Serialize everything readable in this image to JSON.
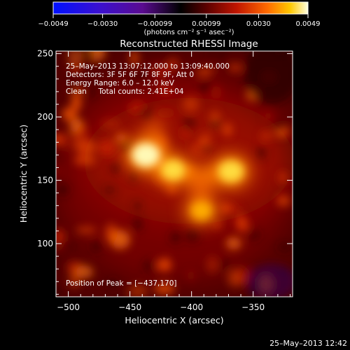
{
  "chart_data": {
    "type": "heatmap",
    "title": "Reconstructed RHESSI Image",
    "xlabel": "Heliocentric X (arcsec)",
    "ylabel": "Heliocentric Y (arcsec)",
    "xlim": [
      -510,
      -318
    ],
    "ylim": [
      58,
      252
    ],
    "x_ticks": [
      -500,
      -450,
      -400,
      -350
    ],
    "x_tick_labels": [
      "−500",
      "−450",
      "−400",
      "−350"
    ],
    "y_ticks": [
      100,
      150,
      200,
      250
    ],
    "y_tick_labels": [
      "100",
      "150",
      "200",
      "250"
    ],
    "colorbar": {
      "ticks": [
        -0.0049,
        -0.003,
        -0.00099,
        0.00099,
        0.003,
        0.0049
      ],
      "tick_labels": [
        "−0.0049",
        "−0.0030",
        "−0.00099",
        "0.00099",
        "0.0030",
        "0.0049"
      ],
      "units": "(photons cm⁻² s⁻¹ asec⁻²)",
      "range": [
        -0.0049,
        0.0049
      ]
    },
    "annotations": [
      "25–May–2013 13:07:12.000 to 13:09:40.000",
      "Detectors: 3F 5F 6F 7F 8F 9F, Att 0",
      "Energy Range: 6.0 – 12.0 keV",
      "Clean     Total counts: 2.41E+04"
    ],
    "peak_label": "Position of Peak = [−437,170]",
    "peak": {
      "x": -437,
      "y": 170
    },
    "sources": [
      {
        "x": -437,
        "y": 170,
        "peak": 0.0049
      },
      {
        "x": -415,
        "y": 158,
        "peak": 0.0038
      },
      {
        "x": -368,
        "y": 157,
        "peak": 0.0042
      },
      {
        "x": -392,
        "y": 126,
        "peak": 0.003
      }
    ],
    "grid": false
  },
  "timestamp": "25–May–2013 12:42"
}
